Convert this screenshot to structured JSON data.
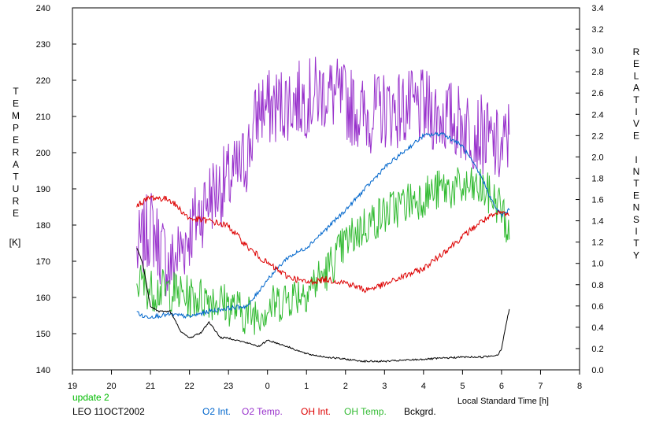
{
  "chart_data": {
    "type": "line",
    "left_axis_label": "TEMPERATURE",
    "left_axis_unit": "[K]",
    "right_axis_label": "RELATIVE INTENSITY",
    "x_label": "Local Standard Time [h]",
    "left_ylim": [
      140,
      240
    ],
    "left_yticks": [
      "140",
      "150",
      "160",
      "170",
      "180",
      "190",
      "200",
      "210",
      "220",
      "230",
      "240"
    ],
    "right_ylim": [
      0.0,
      3.4
    ],
    "right_yticks": [
      "0.0",
      "0.2",
      "0.4",
      "0.6",
      "0.8",
      "1.0",
      "1.2",
      "1.4",
      "1.6",
      "1.8",
      "2.0",
      "2.2",
      "2.4",
      "2.6",
      "2.8",
      "3.0",
      "3.2",
      "3.4"
    ],
    "xlim": [
      19,
      32
    ],
    "x_tick_labels": [
      "19",
      "20",
      "21",
      "22",
      "23",
      "0",
      "1",
      "2",
      "3",
      "4",
      "5",
      "6",
      "7",
      "8"
    ],
    "grid": false,
    "annotation_update": "update 2",
    "annotation_station": "LEO 11OCT2002",
    "colors": {
      "o2_int": "#0066cc",
      "o2_temp": "#9933cc",
      "oh_int": "#dd0000",
      "oh_temp": "#33bb33",
      "bckgrd": "#000000",
      "update": "#00bb00"
    },
    "series": [
      {
        "name": "O2 Int.",
        "axis": "right",
        "noise": 0.02,
        "points": [
          [
            20.65,
            0.55
          ],
          [
            20.8,
            0.5
          ],
          [
            21.0,
            0.5
          ],
          [
            21.5,
            0.52
          ],
          [
            22.0,
            0.5
          ],
          [
            22.5,
            0.55
          ],
          [
            23.0,
            0.58
          ],
          [
            23.5,
            0.6
          ],
          [
            24.0,
            0.85
          ],
          [
            24.5,
            1.05
          ],
          [
            25.0,
            1.15
          ],
          [
            25.5,
            1.32
          ],
          [
            26.0,
            1.5
          ],
          [
            26.5,
            1.7
          ],
          [
            27.0,
            1.9
          ],
          [
            27.5,
            2.05
          ],
          [
            28.0,
            2.2
          ],
          [
            28.5,
            2.22
          ],
          [
            29.0,
            2.1
          ],
          [
            29.5,
            1.8
          ],
          [
            29.8,
            1.55
          ],
          [
            30.0,
            1.45
          ],
          [
            30.2,
            1.5
          ]
        ]
      },
      {
        "name": "O2 Temp.",
        "axis": "left",
        "noise": 11,
        "points": [
          [
            20.65,
            172
          ],
          [
            21.0,
            180
          ],
          [
            21.5,
            168
          ],
          [
            22.0,
            178
          ],
          [
            22.5,
            188
          ],
          [
            23.0,
            192
          ],
          [
            23.3,
            195
          ],
          [
            23.5,
            200
          ],
          [
            23.8,
            213
          ],
          [
            24.0,
            212
          ],
          [
            24.5,
            214
          ],
          [
            25.0,
            215
          ],
          [
            25.5,
            217
          ],
          [
            26.0,
            214
          ],
          [
            26.5,
            210
          ],
          [
            27.0,
            212
          ],
          [
            27.5,
            212
          ],
          [
            28.0,
            212
          ],
          [
            28.5,
            210
          ],
          [
            29.0,
            208
          ],
          [
            29.5,
            205
          ],
          [
            30.0,
            200
          ],
          [
            30.2,
            205
          ]
        ]
      },
      {
        "name": "OH Int.",
        "axis": "right",
        "noise": 0.03,
        "points": [
          [
            20.65,
            1.55
          ],
          [
            21.0,
            1.62
          ],
          [
            21.5,
            1.6
          ],
          [
            22.0,
            1.42
          ],
          [
            22.5,
            1.4
          ],
          [
            23.0,
            1.35
          ],
          [
            23.5,
            1.15
          ],
          [
            24.0,
            1.0
          ],
          [
            24.5,
            0.88
          ],
          [
            25.0,
            0.82
          ],
          [
            25.5,
            0.85
          ],
          [
            26.0,
            0.82
          ],
          [
            26.5,
            0.75
          ],
          [
            27.0,
            0.8
          ],
          [
            27.5,
            0.88
          ],
          [
            28.0,
            0.95
          ],
          [
            28.5,
            1.1
          ],
          [
            29.0,
            1.25
          ],
          [
            29.5,
            1.4
          ],
          [
            30.0,
            1.48
          ],
          [
            30.2,
            1.45
          ]
        ]
      },
      {
        "name": "OH Temp.",
        "axis": "left",
        "noise": 6,
        "points": [
          [
            20.65,
            165
          ],
          [
            21.0,
            162
          ],
          [
            21.5,
            162
          ],
          [
            22.0,
            160
          ],
          [
            22.5,
            160
          ],
          [
            23.0,
            158
          ],
          [
            23.5,
            155
          ],
          [
            24.0,
            157
          ],
          [
            24.5,
            160
          ],
          [
            25.0,
            162
          ],
          [
            25.5,
            167
          ],
          [
            26.0,
            175
          ],
          [
            26.5,
            180
          ],
          [
            27.0,
            183
          ],
          [
            27.5,
            186
          ],
          [
            28.0,
            188
          ],
          [
            28.5,
            190
          ],
          [
            29.0,
            190
          ],
          [
            29.5,
            190
          ],
          [
            30.0,
            185
          ],
          [
            30.2,
            176
          ]
        ]
      },
      {
        "name": "Bckgrd.",
        "axis": "right",
        "noise": 0.008,
        "points": [
          [
            20.65,
            1.15
          ],
          [
            20.8,
            1.0
          ],
          [
            21.0,
            0.6
          ],
          [
            21.2,
            0.55
          ],
          [
            21.5,
            0.55
          ],
          [
            21.8,
            0.35
          ],
          [
            22.0,
            0.3
          ],
          [
            22.3,
            0.35
          ],
          [
            22.5,
            0.45
          ],
          [
            22.8,
            0.3
          ],
          [
            23.0,
            0.3
          ],
          [
            23.5,
            0.25
          ],
          [
            23.8,
            0.22
          ],
          [
            24.0,
            0.28
          ],
          [
            24.5,
            0.22
          ],
          [
            25.0,
            0.15
          ],
          [
            25.5,
            0.12
          ],
          [
            26.0,
            0.1
          ],
          [
            26.5,
            0.08
          ],
          [
            27.0,
            0.08
          ],
          [
            27.5,
            0.09
          ],
          [
            28.0,
            0.1
          ],
          [
            28.5,
            0.11
          ],
          [
            29.0,
            0.12
          ],
          [
            29.5,
            0.12
          ],
          [
            29.9,
            0.14
          ],
          [
            30.0,
            0.2
          ],
          [
            30.1,
            0.4
          ],
          [
            30.2,
            0.57
          ]
        ]
      }
    ]
  }
}
